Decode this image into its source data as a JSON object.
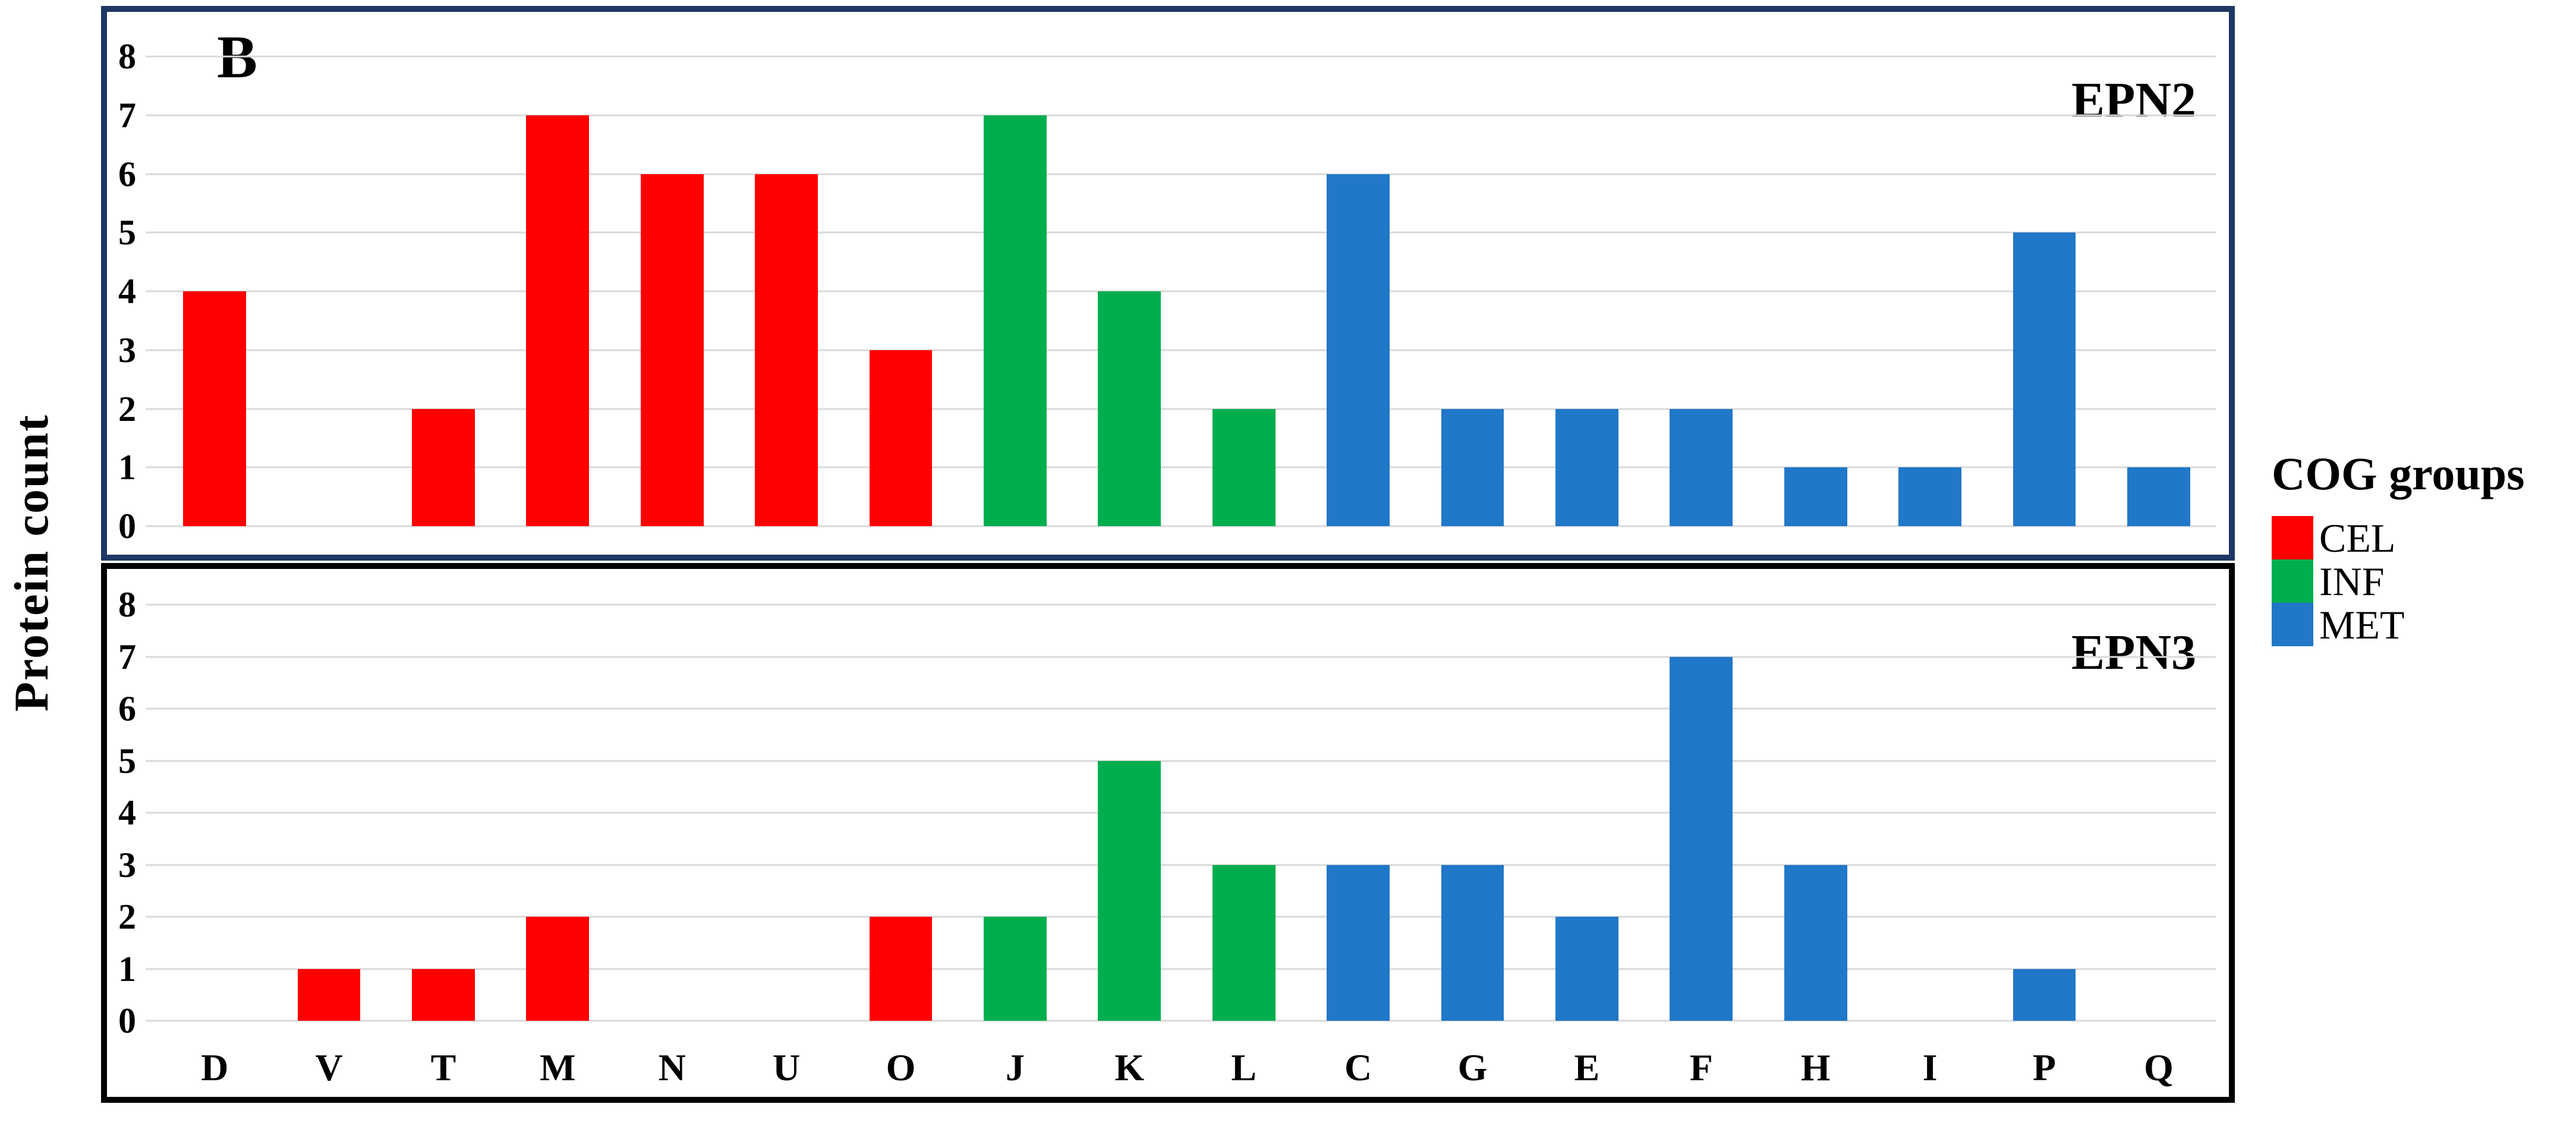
{
  "figure_label": "B",
  "y_axis_title": "Protein count",
  "colors": {
    "cel": "#FF0000",
    "inf": "#00AE4E",
    "met": "#2177C8",
    "epn2_border": "#1F3864",
    "epn3_border": "#000000",
    "gridline": "#D9D9D9"
  },
  "legend": {
    "title": "COG groups",
    "items": [
      {
        "label": "CEL",
        "color": "#FF0000"
      },
      {
        "label": "INF",
        "color": "#00AE4E"
      },
      {
        "label": "MET",
        "color": "#2177C8"
      }
    ]
  },
  "chart_data": [
    {
      "type": "bar",
      "title": "EPN2",
      "categories": [
        "D",
        "V",
        "T",
        "M",
        "N",
        "U",
        "O",
        "J",
        "K",
        "L",
        "C",
        "G",
        "E",
        "F",
        "H",
        "I",
        "P",
        "Q"
      ],
      "groups": [
        "CEL",
        "CEL",
        "CEL",
        "CEL",
        "CEL",
        "CEL",
        "CEL",
        "INF",
        "INF",
        "INF",
        "MET",
        "MET",
        "MET",
        "MET",
        "MET",
        "MET",
        "MET",
        "MET"
      ],
      "values": [
        4,
        0,
        2,
        7,
        6,
        6,
        3,
        7,
        4,
        2,
        6,
        2,
        2,
        2,
        1,
        1,
        5,
        1
      ],
      "ylabel": "Protein count",
      "ylim": [
        0,
        8
      ],
      "yticks": [
        0,
        1,
        2,
        3,
        4,
        5,
        6,
        7,
        8
      ],
      "grid": true,
      "legend_position": "right",
      "show_xlabels": false
    },
    {
      "type": "bar",
      "title": "EPN3",
      "categories": [
        "D",
        "V",
        "T",
        "M",
        "N",
        "U",
        "O",
        "J",
        "K",
        "L",
        "C",
        "G",
        "E",
        "F",
        "H",
        "I",
        "P",
        "Q"
      ],
      "groups": [
        "CEL",
        "CEL",
        "CEL",
        "CEL",
        "CEL",
        "CEL",
        "CEL",
        "INF",
        "INF",
        "INF",
        "MET",
        "MET",
        "MET",
        "MET",
        "MET",
        "MET",
        "MET",
        "MET"
      ],
      "values": [
        0,
        1,
        1,
        2,
        0,
        0,
        2,
        2,
        5,
        3,
        3,
        3,
        2,
        7,
        3,
        0,
        1,
        0
      ],
      "ylabel": "Protein count",
      "ylim": [
        0,
        8
      ],
      "yticks": [
        0,
        1,
        2,
        3,
        4,
        5,
        6,
        7,
        8
      ],
      "grid": true,
      "legend_position": "right",
      "show_xlabels": true
    }
  ]
}
